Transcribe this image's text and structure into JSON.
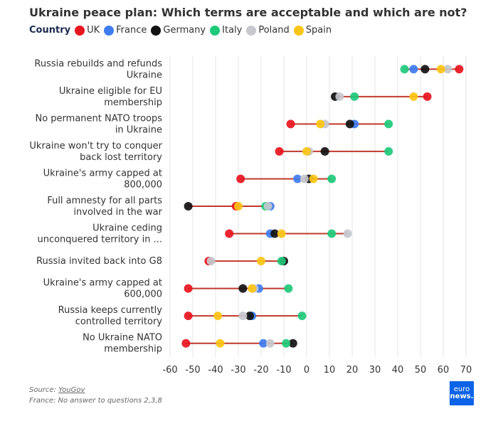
{
  "header": {
    "title": "Ukraine peace plan: Which terms are acceptable and which are not?"
  },
  "legend": {
    "title": "Country"
  },
  "footer": {
    "source_label": "Source: ",
    "source_link": "YouGov",
    "note": "France: No answer to questions 2,3,8"
  },
  "logo": {
    "line1": "euro",
    "line2": "news."
  },
  "chart_data": {
    "type": "dot-range",
    "title": "Ukraine peace plan: Which terms are acceptable and which are not?",
    "xlabel": "",
    "ylabel": "",
    "xlim": [
      -60,
      70
    ],
    "x_ticks": [
      -60,
      -50,
      -40,
      -30,
      -20,
      -10,
      0,
      10,
      20,
      30,
      40,
      50,
      60,
      70
    ],
    "grid": true,
    "legend_position": "top-left",
    "series": [
      {
        "name": "UK",
        "color": "#e8141e"
      },
      {
        "name": "France",
        "color": "#3e7cf0"
      },
      {
        "name": "Germany",
        "color": "#111111"
      },
      {
        "name": "Italy",
        "color": "#1ec97b"
      },
      {
        "name": "Poland",
        "color": "#c6c8ce"
      },
      {
        "name": "Spain",
        "color": "#fcc414"
      }
    ],
    "categories": [
      {
        "label": [
          "Russia rebuilds and refunds",
          "Ukraine"
        ],
        "values": {
          "UK": 67,
          "France": 47,
          "Germany": 52,
          "Italy": 43,
          "Poland": 62,
          "Spain": 59
        }
      },
      {
        "label": [
          "Ukraine eligible for EU",
          "membership"
        ],
        "values": {
          "UK": 53,
          "France": null,
          "Germany": 12.5,
          "Italy": 21,
          "Poland": 14.5,
          "Spain": 47
        }
      },
      {
        "label": [
          "No permanent NATO troops",
          "in Ukraine"
        ],
        "values": {
          "UK": -7,
          "France": 21,
          "Germany": 19,
          "Italy": 36,
          "Poland": 8,
          "Spain": 6
        }
      },
      {
        "label": [
          "Ukraine won't try to conquer",
          "back lost territory"
        ],
        "values": {
          "UK": -12,
          "France": null,
          "Germany": 8,
          "Italy": 36,
          "Poland": 1,
          "Spain": 0
        }
      },
      {
        "label": [
          "Ukraine's army capped at",
          "800,000"
        ],
        "values": {
          "UK": -29,
          "France": -4,
          "Germany": 1,
          "Italy": 11,
          "Poland": -1,
          "Spain": 3
        }
      },
      {
        "label": [
          "Full amnesty for all parts",
          "involved in the war"
        ],
        "values": {
          "UK": -31,
          "France": -16,
          "Germany": -52,
          "Italy": -18,
          "Poland": -17,
          "Spain": -30
        }
      },
      {
        "label": [
          "Ukraine ceding",
          "unconquered territory in ..."
        ],
        "values": {
          "UK": -34,
          "France": -16,
          "Germany": -14,
          "Italy": 11,
          "Poland": 18,
          "Spain": -11
        }
      },
      {
        "label": [
          "Russia invited back into G8"
        ],
        "values": {
          "UK": -43,
          "France": null,
          "Germany": -10,
          "Italy": -11,
          "Poland": -42,
          "Spain": -20
        }
      },
      {
        "label": [
          "Ukraine's army capped at",
          "600,000"
        ],
        "values": {
          "UK": -52,
          "France": -21,
          "Germany": -28,
          "Italy": -8,
          "Poland": -23,
          "Spain": -24
        }
      },
      {
        "label": [
          "Russia keeps currently",
          "controlled territory"
        ],
        "values": {
          "UK": -52,
          "France": -24,
          "Germany": -25,
          "Italy": -2,
          "Poland": -28,
          "Spain": -39
        }
      },
      {
        "label": [
          "No Ukraine NATO",
          "membership"
        ],
        "values": {
          "UK": -53,
          "France": -19,
          "Germany": -6,
          "Italy": -9,
          "Poland": -16,
          "Spain": -38
        }
      }
    ]
  }
}
